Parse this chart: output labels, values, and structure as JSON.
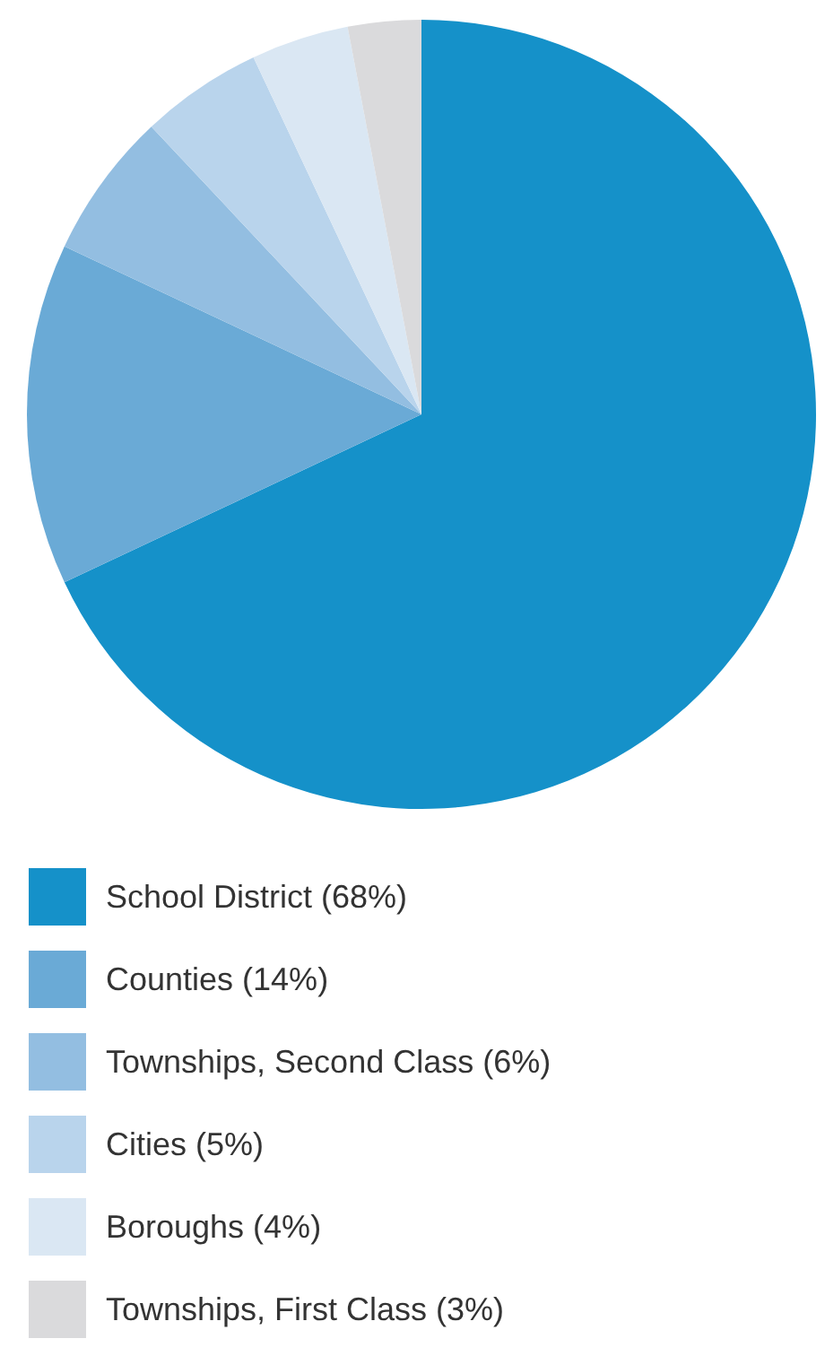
{
  "chart_data": {
    "type": "pie",
    "categories": [
      "School District (68%)",
      "Counties (14%)",
      "Townships, Second Class (6%)",
      "Cities (5%)",
      "Boroughs (4%)",
      "Townships, First Class (3%)"
    ],
    "values": [
      68,
      14,
      6,
      5,
      4,
      3
    ],
    "colors": [
      "#1591c9",
      "#6aaad6",
      "#93bee1",
      "#b9d4ec",
      "#dae7f3",
      "#dadadc"
    ],
    "legend": "bottom"
  }
}
